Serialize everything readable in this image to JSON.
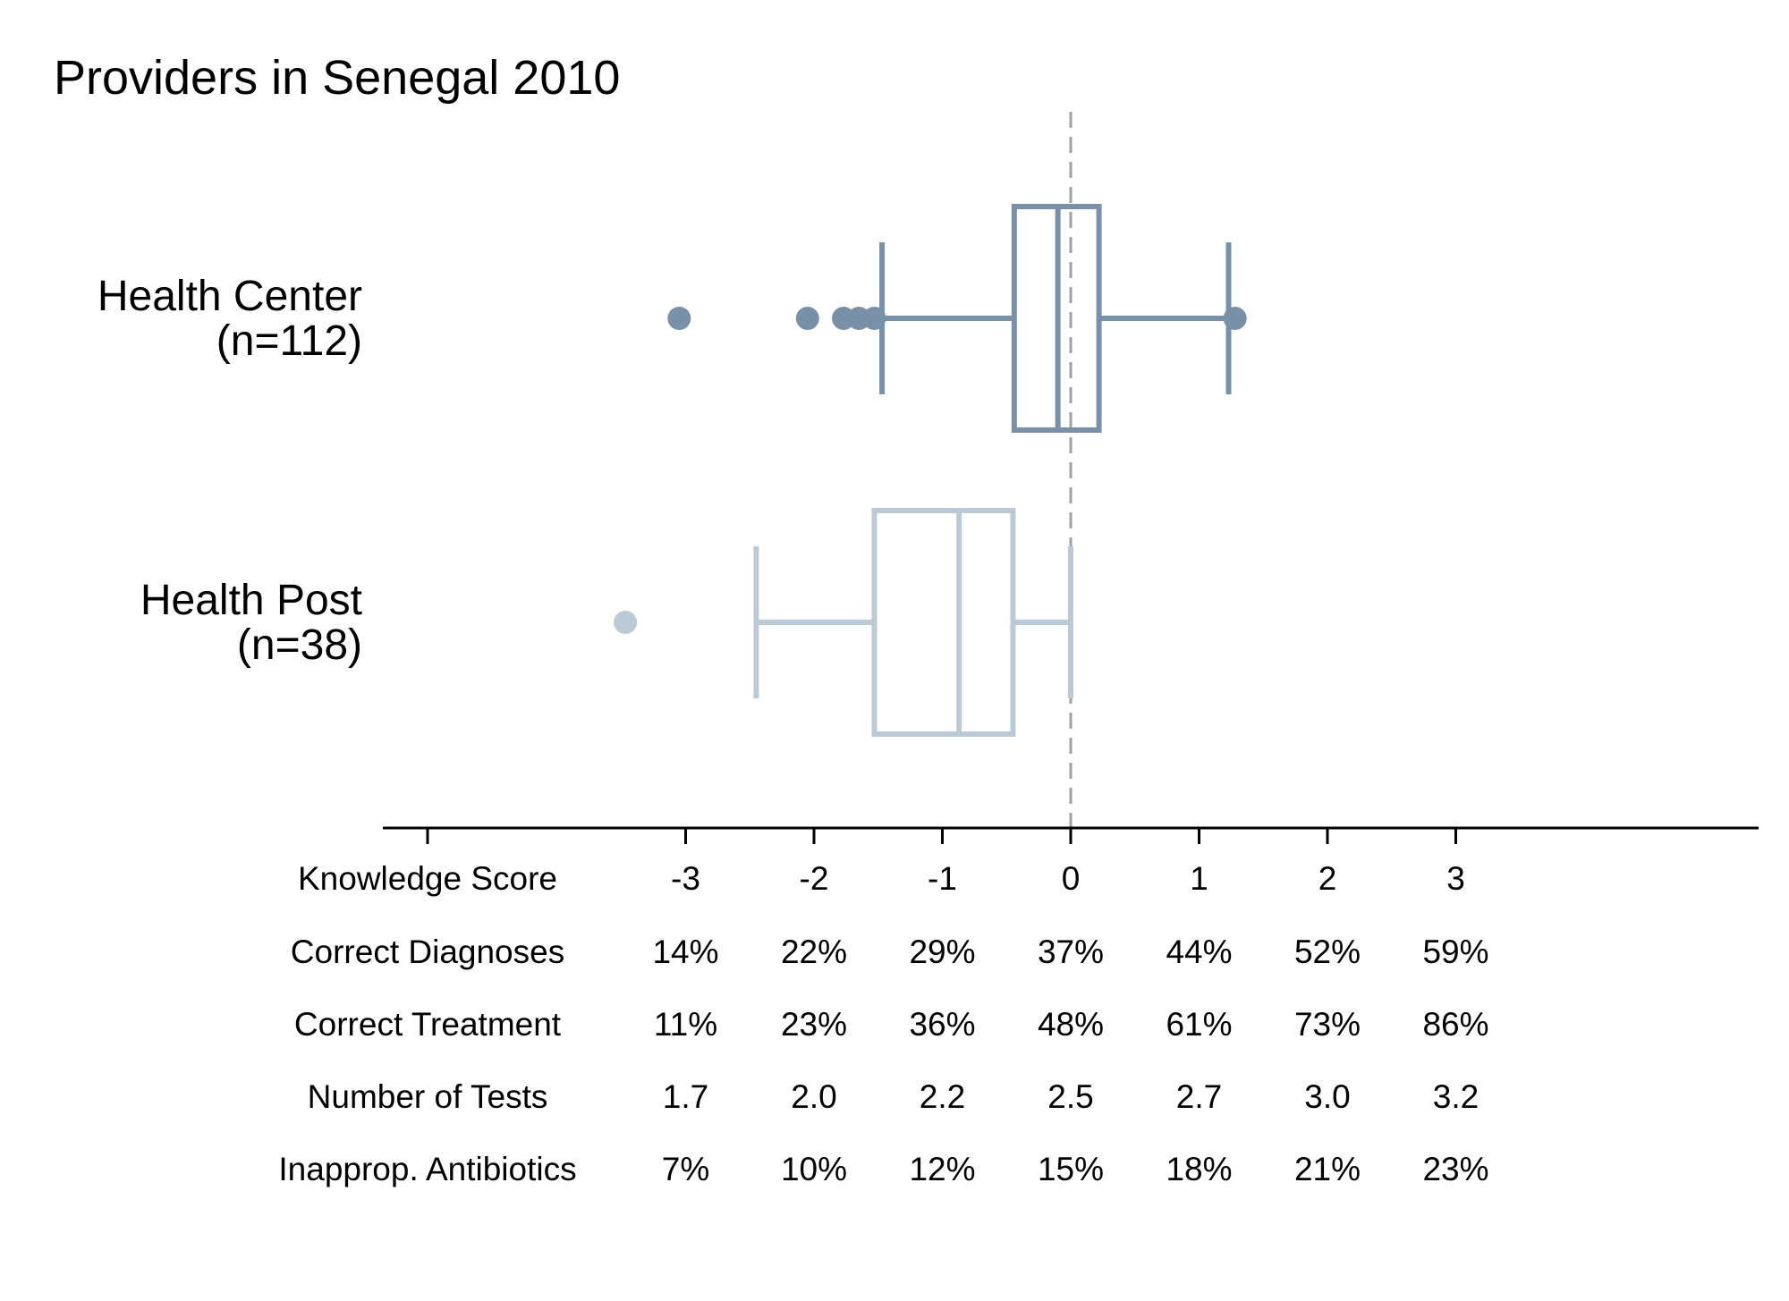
{
  "chart_data": {
    "type": "box",
    "title": "Providers in Senegal 2010",
    "reference_line": 0,
    "xlim": [
      -3.5,
      5.4
    ],
    "groups": [
      {
        "label": "Health Center",
        "n_label": "(n=112)",
        "color": "#7891a8",
        "whisker_low": -1.47,
        "q1": -0.44,
        "median": -0.1,
        "q3": 0.22,
        "whisker_high": 1.23,
        "outliers": [
          -3.05,
          -2.05,
          -1.77,
          -1.65,
          -1.53,
          1.28
        ]
      },
      {
        "label": "Health Post",
        "n_label": "(n=38)",
        "color": "#bccad5",
        "whisker_low": -2.45,
        "q1": -1.53,
        "median": -0.87,
        "q3": -0.45,
        "whisker_high": 0.0,
        "outliers": [
          -3.47
        ]
      }
    ],
    "table": {
      "columns": [
        "-3",
        "-2",
        "-1",
        "0",
        "1",
        "2",
        "3"
      ],
      "column_values": [
        -3,
        -2,
        -1,
        0,
        1,
        2,
        3
      ],
      "rows": [
        {
          "label": "Knowledge Score",
          "values": [
            "-3",
            "-2",
            "-1",
            "0",
            "1",
            "2",
            "3"
          ]
        },
        {
          "label": "Correct Diagnoses",
          "values": [
            "14%",
            "22%",
            "29%",
            "37%",
            "44%",
            "52%",
            "59%"
          ]
        },
        {
          "label": "Correct Treatment",
          "values": [
            "11%",
            "23%",
            "36%",
            "48%",
            "61%",
            "73%",
            "86%"
          ]
        },
        {
          "label": "Number of Tests",
          "values": [
            "1.7",
            "2.0",
            "2.2",
            "2.5",
            "2.7",
            "3.0",
            "3.2"
          ]
        },
        {
          "label": "Inapprop. Antibiotics",
          "values": [
            "7%",
            "10%",
            "12%",
            "15%",
            "18%",
            "21%",
            "23%"
          ]
        }
      ]
    },
    "axis_ticks": [
      -5,
      -3,
      -2,
      -1,
      0,
      1,
      2,
      3
    ]
  }
}
